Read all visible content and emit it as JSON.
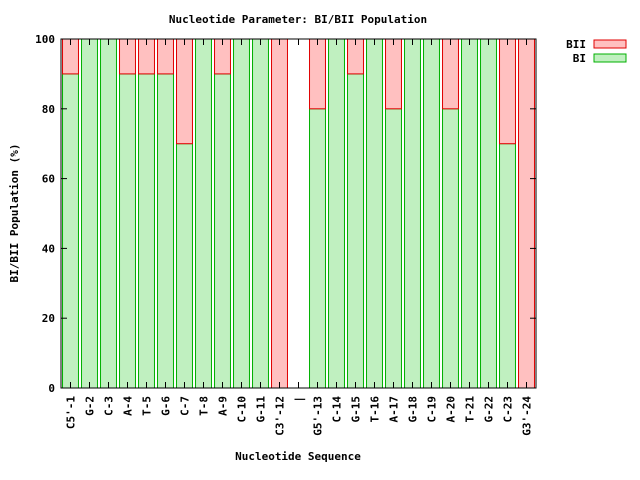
{
  "chart_data": {
    "type": "bar",
    "stacked": true,
    "title": "Nucleotide Parameter: BI/BII Population",
    "xlabel": "Nucleotide Sequence",
    "ylabel": "BI/BII Population (%)",
    "ylim": [
      0,
      100
    ],
    "yticks": [
      0,
      20,
      40,
      60,
      80,
      100
    ],
    "grid": false,
    "legend_position": "top-right-outside",
    "categories": [
      "C5'-1",
      "G-2",
      "C-3",
      "A-4",
      "T-5",
      "G-6",
      "C-7",
      "T-8",
      "A-9",
      "C-10",
      "G-11",
      "C3'-12",
      "|",
      "G5'-13",
      "C-14",
      "G-15",
      "T-16",
      "A-17",
      "G-18",
      "C-19",
      "A-20",
      "T-21",
      "G-22",
      "C-23",
      "G3'-24"
    ],
    "series": [
      {
        "name": "BI",
        "color": "#c0f0c0",
        "stroke": "#00b000",
        "values": [
          90,
          100,
          100,
          90,
          90,
          90,
          70,
          100,
          90,
          100,
          100,
          0,
          null,
          80,
          100,
          90,
          100,
          80,
          100,
          100,
          80,
          100,
          100,
          70,
          0
        ]
      },
      {
        "name": "BII",
        "color": "#ffc0c0",
        "stroke": "#e00000",
        "values": [
          10,
          0,
          0,
          10,
          10,
          10,
          30,
          0,
          10,
          0,
          0,
          100,
          null,
          20,
          0,
          10,
          0,
          20,
          0,
          0,
          20,
          0,
          0,
          30,
          100
        ]
      }
    ]
  }
}
